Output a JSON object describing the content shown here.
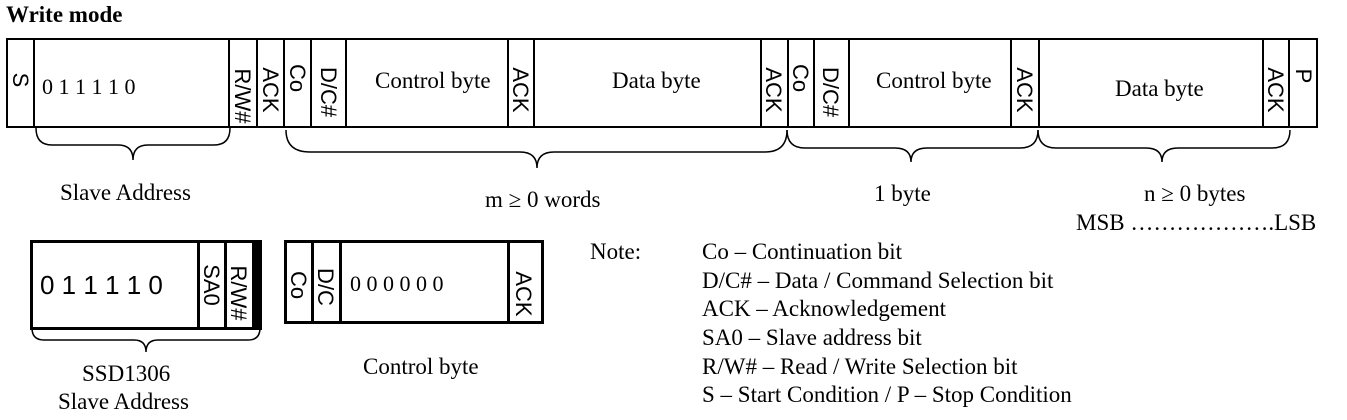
{
  "title": "Write mode",
  "frame": {
    "start": "S",
    "address_bits": "0 1 1 1 1 0",
    "rw": "R/W#",
    "ack": "ACK",
    "co": "Co",
    "dc": "D/C#",
    "control_byte": "Control byte",
    "data_byte": "Data byte",
    "stop": "P"
  },
  "braces": {
    "slave_address": "Slave Address",
    "m_words": "m ≥ 0 words",
    "one_byte": "1 byte",
    "n_bytes": "n  ≥  0 bytes",
    "msb_lsb": "MSB ……………….LSB"
  },
  "slave_box": {
    "bits": "0 1 1 1 1 0",
    "sa0": "SA0",
    "rw": "R/W#",
    "caption_line1": "SSD1306",
    "caption_line2": "Slave Address"
  },
  "control_box": {
    "co": "Co",
    "dc": "D/C",
    "bits": "0 0 0 0 0 0",
    "ack": "ACK",
    "caption": "Control byte"
  },
  "notes": {
    "heading": "Note:",
    "items": [
      "Co – Continuation bit",
      "D/C# – Data / Command Selection bit",
      "ACK – Acknowledgement",
      "SA0 – Slave address bit",
      "R/W# – Read / Write Selection bit",
      "S – Start Condition / P – Stop Condition"
    ]
  }
}
